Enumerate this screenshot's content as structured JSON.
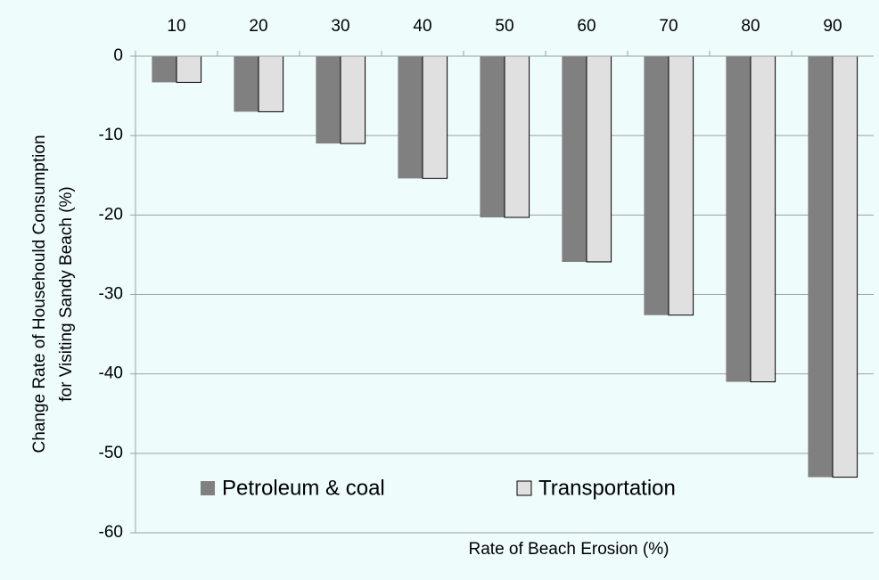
{
  "chart_data": {
    "type": "bar",
    "xlabel": "Rate of Beach Erosion (%)",
    "ylabel": [
      "Change Rate of Househould Consumption",
      "for Visiting Sandy Beach  (%)"
    ],
    "categories": [
      "10",
      "20",
      "30",
      "40",
      "50",
      "60",
      "70",
      "80",
      "90"
    ],
    "series": [
      {
        "name": "Petroleum & coal",
        "color": "#808080",
        "values": [
          -3.3,
          -7,
          -11,
          -15.4,
          -20.3,
          -25.9,
          -32.6,
          -41,
          -53
        ]
      },
      {
        "name": "Transportation",
        "color": "#e0e0e0",
        "values": [
          -3.3,
          -7,
          -11,
          -15.4,
          -20.3,
          -25.9,
          -32.6,
          -41,
          -53
        ]
      }
    ],
    "ylim": [
      -60,
      0
    ],
    "yticks": [
      0,
      -10,
      -20,
      -30,
      -40,
      -50,
      -60
    ],
    "grid": true,
    "legend": "lower left"
  }
}
